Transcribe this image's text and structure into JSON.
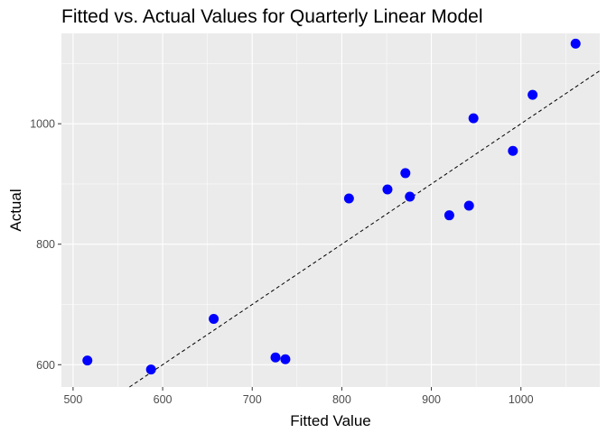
{
  "chart_data": {
    "type": "scatter",
    "title": "Fitted vs. Actual Values for Quarterly Linear Model",
    "xlabel": "Fitted Value",
    "ylabel": "Actual",
    "xlim": [
      487,
      1088
    ],
    "ylim": [
      563,
      1150
    ],
    "x_ticks": [
      500,
      600,
      700,
      800,
      900,
      1000
    ],
    "y_ticks": [
      600,
      800,
      1000
    ],
    "grid": true,
    "point_color": "#0000FF",
    "reference_line": {
      "slope": 1,
      "intercept": 0,
      "style": "dashed",
      "color": "#000000"
    },
    "points": [
      {
        "x": 516,
        "y": 607
      },
      {
        "x": 587,
        "y": 592
      },
      {
        "x": 657,
        "y": 676
      },
      {
        "x": 726,
        "y": 612
      },
      {
        "x": 737,
        "y": 609
      },
      {
        "x": 808,
        "y": 876
      },
      {
        "x": 851,
        "y": 891
      },
      {
        "x": 871,
        "y": 918
      },
      {
        "x": 876,
        "y": 879
      },
      {
        "x": 920,
        "y": 848
      },
      {
        "x": 942,
        "y": 864
      },
      {
        "x": 947,
        "y": 1009
      },
      {
        "x": 991,
        "y": 955
      },
      {
        "x": 1013,
        "y": 1048
      },
      {
        "x": 1061,
        "y": 1133
      }
    ]
  }
}
